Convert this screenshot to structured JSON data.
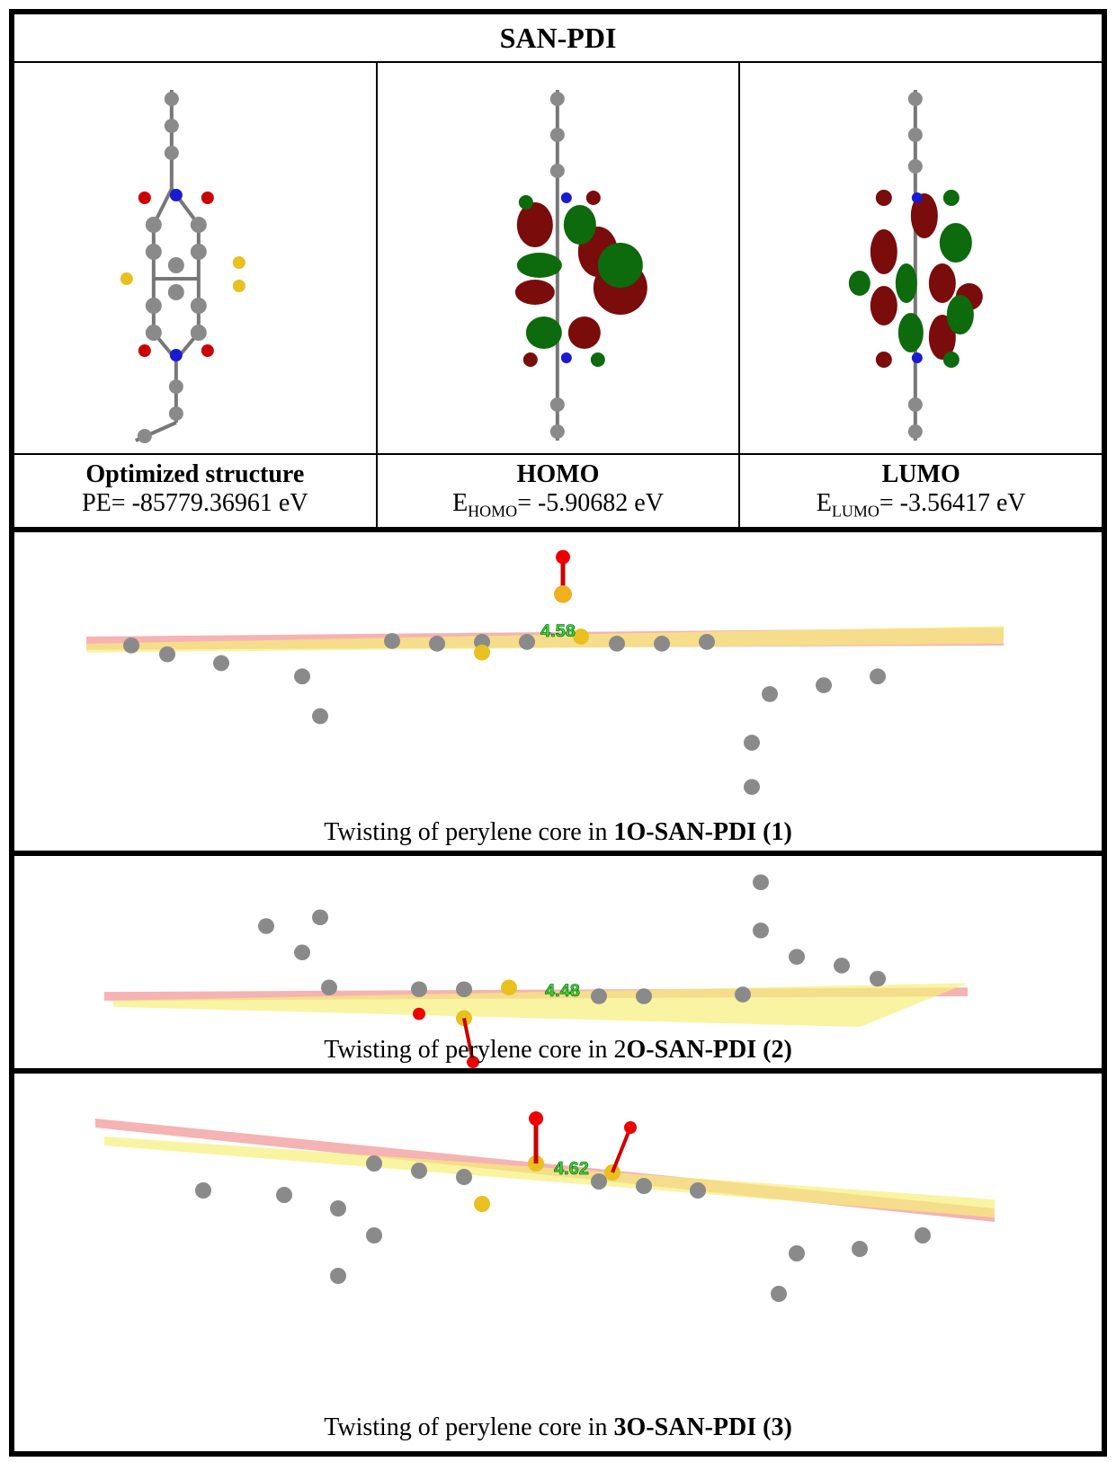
{
  "title": "SAN-PDI",
  "structures": [
    {
      "heading": "Optimized structure",
      "value": "PE= -85779.36961 eV"
    },
    {
      "heading": "HOMO",
      "value_prefix": "E",
      "value_sub": "HOMO",
      "value_rest": "= -5.90682 eV"
    },
    {
      "heading": "LUMO",
      "value_prefix": "E",
      "value_sub": "LUMO",
      "value_rest": "= -3.56417 eV"
    }
  ],
  "panels": [
    {
      "angle": "4.58",
      "caption_text": "Twisting of perylene core in ",
      "caption_bold": "1O-SAN-PDI (1)"
    },
    {
      "angle": "4.48",
      "caption_text": "Twisting of perylene core in 2",
      "caption_bold": "O-SAN-PDI (2)"
    },
    {
      "angle": "4.62",
      "caption_text": "Twisting of perylene core in ",
      "caption_bold": "3O-SAN-PDI (3)"
    }
  ]
}
